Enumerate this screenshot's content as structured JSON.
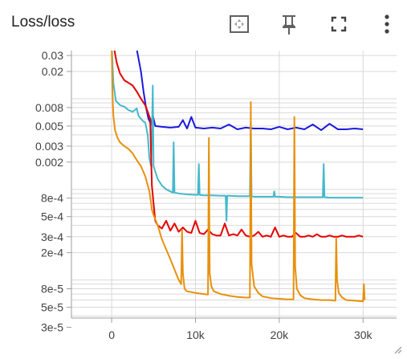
{
  "header": {
    "title": "Loss/loss",
    "icons": [
      "fit-domain-icon",
      "pin-icon",
      "fullscreen-icon",
      "more-vert-icon"
    ]
  },
  "colors": {
    "blue": "#1a1adc",
    "cyan": "#44b8cc",
    "red": "#e60000",
    "orange": "#e8900c",
    "grid": "#d9d9d9",
    "axis": "#9e9e9e"
  },
  "chart_data": {
    "type": "line",
    "title": "",
    "xlabel": "",
    "ylabel": "",
    "yscale": "log",
    "xlim": [
      -4800,
      34000
    ],
    "ylim": [
      3.8e-05,
      0.034
    ],
    "grid": true,
    "x_ticks": [
      {
        "value": 0,
        "label": "0"
      },
      {
        "value": 10000,
        "label": "10k"
      },
      {
        "value": 20000,
        "label": "20k"
      },
      {
        "value": 30000,
        "label": "30k"
      }
    ],
    "y_ticks": [
      {
        "value": 0.03,
        "label": "0.03"
      },
      {
        "value": 0.02,
        "label": "0.02"
      },
      {
        "value": 0.008,
        "label": "0.008"
      },
      {
        "value": 0.005,
        "label": "0.005"
      },
      {
        "value": 0.003,
        "label": "0.003"
      },
      {
        "value": 0.002,
        "label": "0.002"
      },
      {
        "value": 0.0008,
        "label": "8e-4"
      },
      {
        "value": 0.0005,
        "label": "5e-4"
      },
      {
        "value": 0.0003,
        "label": "3e-4"
      },
      {
        "value": 0.0002,
        "label": "2e-4"
      },
      {
        "value": 8e-05,
        "label": "8e-5"
      },
      {
        "value": 5e-05,
        "label": "5e-5"
      },
      {
        "value": 3e-05,
        "label": "3e-5"
      }
    ],
    "series": [
      {
        "color": "#1a1adc",
        "x": [
          400,
          2000,
          3000,
          3500,
          3800,
          4100,
          4400,
          4700,
          4900,
          5200,
          6000,
          7000,
          8000,
          8500,
          9000,
          9500,
          10000,
          11000,
          12000,
          13000,
          14000,
          15000,
          16000,
          17000,
          18000,
          19000,
          20000,
          21000,
          22000,
          23000,
          24000,
          25000,
          26000,
          27000,
          28000,
          29000,
          30000
        ],
        "y": [
          0.04,
          0.04,
          0.035,
          0.02,
          0.012,
          0.008,
          0.006,
          0.0052,
          0.0066,
          0.005,
          0.0049,
          0.0048,
          0.0049,
          0.0058,
          0.0047,
          0.0063,
          0.0048,
          0.0047,
          0.0048,
          0.0047,
          0.0052,
          0.0046,
          0.0048,
          0.0047,
          0.0047,
          0.0046,
          0.0049,
          0.0046,
          0.0048,
          0.0046,
          0.0052,
          0.0045,
          0.0053,
          0.0046,
          0.0046,
          0.0047,
          0.0046
        ]
      },
      {
        "color": "#44b8cc",
        "x": [
          0,
          200,
          500,
          1000,
          1500,
          2000,
          2500,
          3000,
          3200,
          3500,
          3800,
          4000,
          4300,
          4500,
          4700,
          4800,
          4900,
          5000,
          5500,
          6000,
          6500,
          7000,
          7300,
          7400,
          7500,
          8000,
          9000,
          10000,
          10300,
          10400,
          10500,
          11000,
          12000,
          13000,
          13600,
          13700,
          13800,
          14000,
          15000,
          16000,
          16500,
          16600,
          16700,
          17000,
          18000,
          19000,
          19300,
          19400,
          19500,
          20000,
          21000,
          22000,
          23000,
          24000,
          25000,
          25200,
          25300,
          25400,
          26000,
          27000,
          28000,
          29000,
          30000
        ],
        "y": [
          0.04,
          0.015,
          0.0095,
          0.0085,
          0.0082,
          0.0075,
          0.0072,
          0.0078,
          0.0065,
          0.006,
          0.0056,
          0.0055,
          0.004,
          0.0022,
          0.0018,
          0.0035,
          0.014,
          0.0018,
          0.0013,
          0.0011,
          0.001,
          0.00095,
          0.00092,
          0.0033,
          0.00092,
          0.0009,
          0.00088,
          0.00087,
          0.00087,
          0.0019,
          0.00087,
          0.00086,
          0.00086,
          0.00085,
          0.00085,
          0.00045,
          0.00085,
          0.00085,
          0.00084,
          0.00084,
          0.00084,
          0.0055,
          0.00084,
          0.00083,
          0.00083,
          0.00083,
          0.00083,
          0.00095,
          0.00083,
          0.00083,
          0.00082,
          0.00082,
          0.00082,
          0.00082,
          0.00082,
          0.00082,
          0.0019,
          0.00082,
          0.00081,
          0.00081,
          0.00081,
          0.00081,
          0.00081
        ]
      },
      {
        "color": "#e60000",
        "x": [
          200,
          600,
          1000,
          1500,
          2000,
          2500,
          3000,
          3500,
          4000,
          4300,
          4600,
          4800,
          5000,
          5200,
          5500,
          6000,
          6500,
          7000,
          7500,
          8000,
          8500,
          9000,
          9500,
          10000,
          10500,
          11000,
          11500,
          12000,
          12500,
          13000,
          13500,
          14000,
          14500,
          15000,
          15500,
          16000,
          16500,
          17000,
          17500,
          18000,
          18500,
          19000,
          19500,
          20000,
          20500,
          21000,
          21500,
          22000,
          22500,
          23000,
          23500,
          24000,
          24500,
          25000,
          25500,
          26000,
          26500,
          27000,
          27500,
          28000,
          28500,
          29000,
          29500,
          30000
        ],
        "y": [
          0.04,
          0.025,
          0.019,
          0.016,
          0.015,
          0.014,
          0.012,
          0.01,
          0.0085,
          0.0072,
          0.006,
          0.0011,
          0.0007,
          0.00045,
          0.0004,
          0.00037,
          0.00045,
          0.00035,
          0.00042,
          0.00034,
          0.00038,
          0.00034,
          0.00033,
          0.00045,
          0.00033,
          0.00032,
          0.00036,
          0.00032,
          0.00031,
          0.00031,
          0.00042,
          0.00031,
          0.00032,
          0.00031,
          0.00036,
          0.00031,
          0.0003,
          0.00031,
          0.00034,
          0.0003,
          0.00031,
          0.0003,
          0.00038,
          0.0003,
          0.00031,
          0.0003,
          0.0003,
          0.00033,
          0.0003,
          0.0003,
          0.00031,
          0.0003,
          0.00032,
          0.0003,
          0.0003,
          0.00031,
          0.0003,
          0.0003,
          0.00031,
          0.0003,
          0.0003,
          0.0003,
          0.00031,
          0.0003
        ]
      },
      {
        "color": "#e8900c",
        "x": [
          0,
          100,
          200,
          400,
          700,
          1000,
          1500,
          2000,
          2500,
          3000,
          3500,
          4000,
          4500,
          4800,
          5000,
          5500,
          6000,
          7000,
          8000,
          8300,
          8400,
          8500,
          8700,
          9000,
          10000,
          11000,
          11500,
          11600,
          11700,
          11900,
          12200,
          13000,
          14000,
          15000,
          16000,
          16500,
          16600,
          16700,
          17000,
          17500,
          18000,
          19000,
          20000,
          21000,
          21700,
          21800,
          21900,
          22100,
          22500,
          23000,
          24000,
          25000,
          26000,
          26700,
          26800,
          26900,
          27100,
          27500,
          28000,
          29000,
          30000,
          30100,
          30200
        ],
        "y": [
          0.04,
          0.012,
          0.0065,
          0.0045,
          0.0037,
          0.0033,
          0.003,
          0.0028,
          0.0025,
          0.0021,
          0.0018,
          0.0014,
          0.00095,
          0.0006,
          0.00052,
          0.0004,
          0.00028,
          0.00017,
          0.0001,
          9e-05,
          0.00036,
          0.00012,
          8e-05,
          7.5e-05,
          7.2e-05,
          7e-05,
          6.9e-05,
          0.0037,
          0.00012,
          8.5e-05,
          7.5e-05,
          7e-05,
          6.7e-05,
          6.5e-05,
          6.4e-05,
          6.4e-05,
          0.0092,
          0.00015,
          8.5e-05,
          7.2e-05,
          6.6e-05,
          6.3e-05,
          6.2e-05,
          6.1e-05,
          6.1e-05,
          0.0063,
          0.00014,
          8e-05,
          6.8e-05,
          6.3e-05,
          6.1e-05,
          6e-05,
          6e-05,
          5.9e-05,
          0.00029,
          0.0001,
          7.2e-05,
          6.4e-05,
          6e-05,
          5.9e-05,
          5.8e-05,
          9e-05,
          6e-05
        ]
      }
    ]
  }
}
